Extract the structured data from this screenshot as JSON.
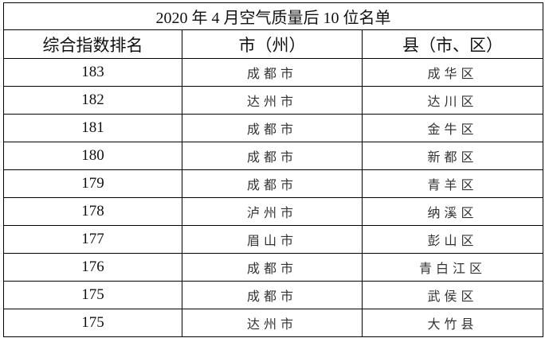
{
  "title": "2020 年 4 月空气质量后 10 位名单",
  "headers": [
    "综合指数排名",
    "市（州）",
    "县（市、区）"
  ],
  "rows": [
    {
      "rank": "183",
      "city": "成都市",
      "county": "成华区"
    },
    {
      "rank": "182",
      "city": "达州市",
      "county": "达川区"
    },
    {
      "rank": "181",
      "city": "成都市",
      "county": "金牛区"
    },
    {
      "rank": "180",
      "city": "成都市",
      "county": "新都区"
    },
    {
      "rank": "179",
      "city": "成都市",
      "county": "青羊区"
    },
    {
      "rank": "178",
      "city": "泸州市",
      "county": "纳溪区"
    },
    {
      "rank": "177",
      "city": "眉山市",
      "county": "彭山区"
    },
    {
      "rank": "176",
      "city": "成都市",
      "county": "青白江区"
    },
    {
      "rank": "175",
      "city": "成都市",
      "county": "武侯区"
    },
    {
      "rank": "175",
      "city": "达州市",
      "county": "大竹县"
    }
  ]
}
